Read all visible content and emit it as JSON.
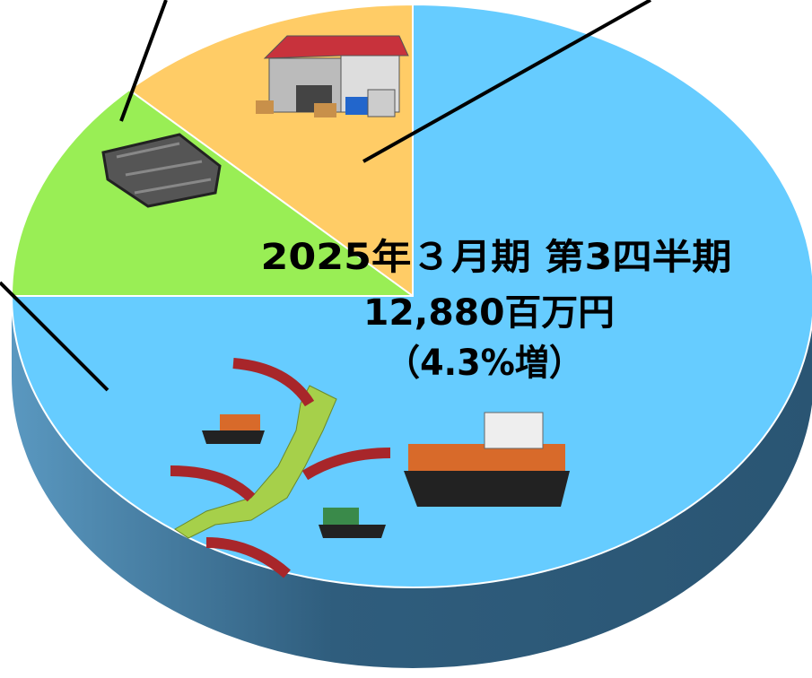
{
  "chart_data": {
    "type": "pie",
    "title": "2025年３月期 第3四半期",
    "subtitle": "12,880百万円",
    "annotation": "（4.3%増）",
    "values": [
      12.5,
      12.5,
      75
    ],
    "colors": [
      "#ffcc66",
      "#99ee55",
      "#66ccff"
    ]
  }
}
